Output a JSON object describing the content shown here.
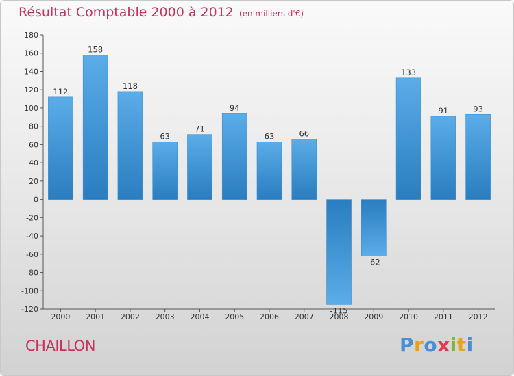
{
  "title": "Résultat Comptable 2000 à 2012",
  "subtitle": "(en milliers d'€)",
  "commune": "CHAILLON",
  "logo": {
    "text": "Proxiti",
    "letters": [
      {
        "ch": "P",
        "color": "#4a8fd6"
      },
      {
        "ch": "r",
        "color": "#e9a21a"
      },
      {
        "ch": "o",
        "color": "#4a8fd6"
      },
      {
        "ch": "x",
        "color": "#e23a55"
      },
      {
        "ch": "i",
        "color": "#7ab63e"
      },
      {
        "ch": "t",
        "color": "#e9a21a"
      },
      {
        "ch": "i",
        "color": "#4a8fd6"
      }
    ]
  },
  "colors": {
    "title": "#cc2f5c",
    "bar_light": "#5aade8",
    "bar_dark": "#2a7dbf"
  },
  "chart_data": {
    "type": "bar",
    "title": "Résultat Comptable 2000 à 2012",
    "xlabel": "",
    "ylabel": "",
    "categories": [
      "2000",
      "2001",
      "2002",
      "2003",
      "2004",
      "2005",
      "2006",
      "2007",
      "2008",
      "2009",
      "2010",
      "2011",
      "2012"
    ],
    "values": [
      112,
      158,
      118,
      63,
      71,
      94,
      63,
      66,
      -115,
      -62,
      133,
      91,
      93
    ],
    "ylim": [
      -120,
      180
    ],
    "yticks": [
      180,
      160,
      140,
      120,
      100,
      80,
      60,
      40,
      20,
      0,
      -20,
      -40,
      -60,
      -80,
      -100,
      -120
    ],
    "grid": false
  }
}
